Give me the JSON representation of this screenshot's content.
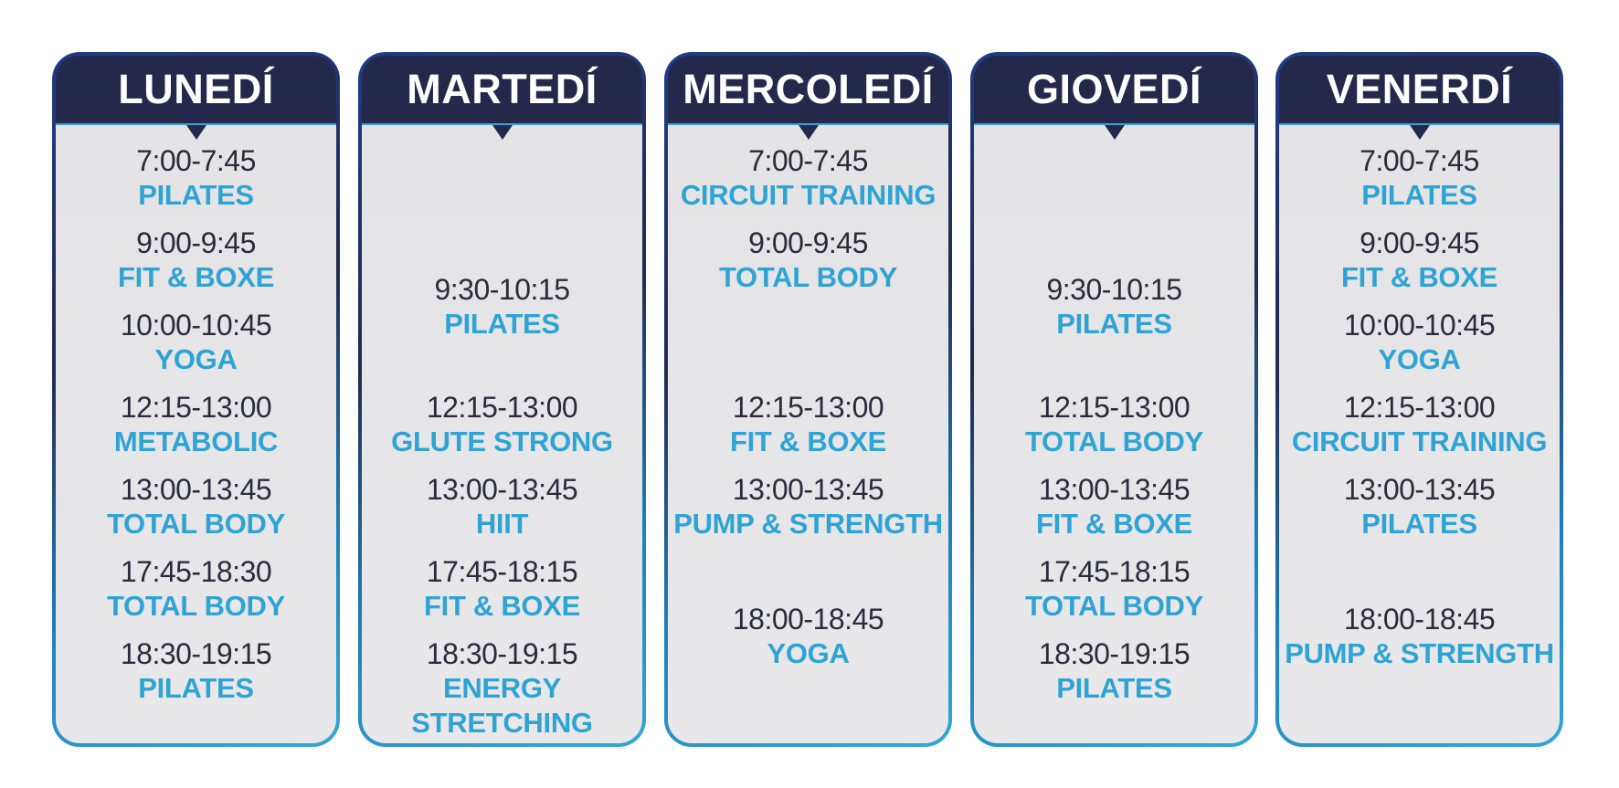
{
  "days": [
    {
      "name": "LUNEDÍ",
      "slots": [
        {
          "time": "7:00-7:45",
          "class": "PILATES"
        },
        {
          "time": "9:00-9:45",
          "class": "FIT & BOXE"
        },
        {
          "time": "10:00-10:45",
          "class": "YOGA"
        },
        {
          "time": "12:15-13:00",
          "class": "METABOLIC"
        },
        {
          "time": "13:00-13:45",
          "class": "TOTAL BODY"
        },
        {
          "time": "17:45-18:30",
          "class": "TOTAL BODY"
        },
        {
          "time": "18:30-19:15",
          "class": "PILATES"
        }
      ]
    },
    {
      "name": "MARTEDÍ",
      "slots": [
        {
          "time": "9:30-10:15",
          "class": "PILATES"
        },
        {
          "time": "12:15-13:00",
          "class": "GLUTE STRONG"
        },
        {
          "time": "13:00-13:45",
          "class": "HIIT"
        },
        {
          "time": "17:45-18:15",
          "class": "FIT & BOXE"
        },
        {
          "time": "18:30-19:15",
          "class": "ENERGY",
          "class_line2": "STRETCHING"
        }
      ]
    },
    {
      "name": "MERCOLEDÍ",
      "slots": [
        {
          "time": "7:00-7:45",
          "class": "CIRCUIT TRAINING"
        },
        {
          "time": "9:00-9:45",
          "class": "TOTAL BODY"
        },
        {
          "time": "12:15-13:00",
          "class": "FIT & BOXE"
        },
        {
          "time": "13:00-13:45",
          "class": "PUMP & STRENGTH"
        },
        {
          "time": "18:00-18:45",
          "class": "YOGA"
        }
      ]
    },
    {
      "name": "GIOVEDÍ",
      "slots": [
        {
          "time": "9:30-10:15",
          "class": "PILATES"
        },
        {
          "time": "12:15-13:00",
          "class": "TOTAL BODY"
        },
        {
          "time": "13:00-13:45",
          "class": "FIT & BOXE"
        },
        {
          "time": "17:45-18:15",
          "class": "TOTAL BODY"
        },
        {
          "time": "18:30-19:15",
          "class": "PILATES"
        }
      ]
    },
    {
      "name": "VENERDÍ",
      "slots": [
        {
          "time": "7:00-7:45",
          "class": "PILATES"
        },
        {
          "time": "9:00-9:45",
          "class": "FIT & BOXE"
        },
        {
          "time": "10:00-10:45",
          "class": "YOGA"
        },
        {
          "time": "12:15-13:00",
          "class": "CIRCUIT TRAINING"
        },
        {
          "time": "13:00-13:45",
          "class": "PILATES"
        },
        {
          "time": "18:00-18:45",
          "class": "PUMP & STRENGTH"
        }
      ]
    }
  ]
}
